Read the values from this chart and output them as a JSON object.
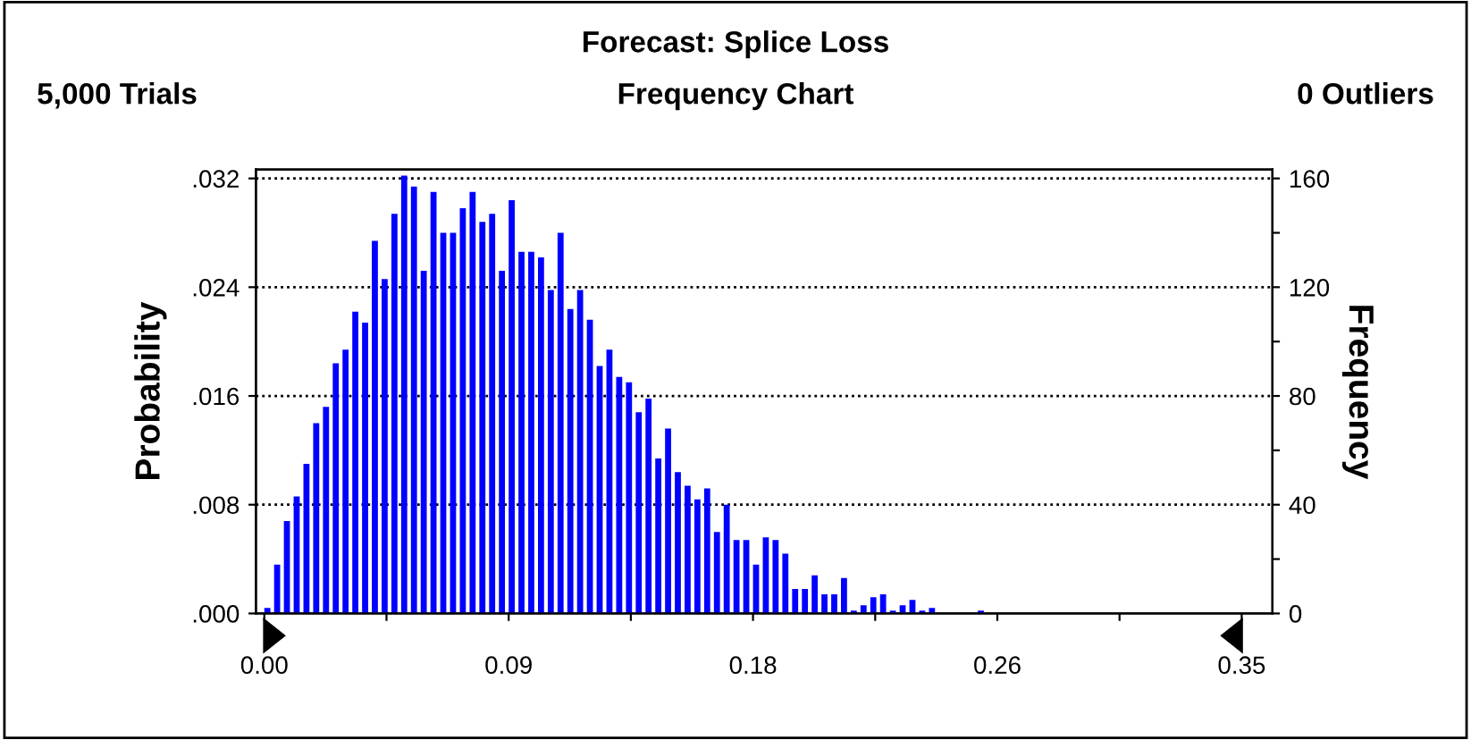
{
  "chart_data": {
    "type": "histogram",
    "title": "Forecast: Splice Loss",
    "subtitle": "Frequency Chart",
    "annotations": [
      "5,000 Trials",
      "0 Outliers"
    ],
    "ylabel": "Probability",
    "y2label": "Frequency",
    "bins": [
      0.0,
      0.0035,
      0.007,
      0.0105,
      0.014,
      0.0175,
      0.021,
      0.0245,
      0.028,
      0.0315,
      0.035,
      0.0385,
      0.042,
      0.0455,
      0.049,
      0.0525,
      0.056,
      0.0595,
      0.063,
      0.0665,
      0.07,
      0.0735,
      0.077,
      0.0805,
      0.084,
      0.0875,
      0.091,
      0.0945,
      0.098,
      0.1015,
      0.105,
      0.1085,
      0.112,
      0.1155,
      0.119,
      0.1225,
      0.126,
      0.1295,
      0.133,
      0.1365,
      0.14,
      0.1435,
      0.147,
      0.1505,
      0.154,
      0.1575,
      0.161,
      0.1645,
      0.168,
      0.1715,
      0.175,
      0.1785,
      0.182,
      0.1855,
      0.189,
      0.1925,
      0.196,
      0.1995,
      0.203,
      0.2065,
      0.21,
      0.2135,
      0.217,
      0.2205,
      0.224,
      0.2275,
      0.231,
      0.2345,
      0.238,
      0.2415,
      0.245,
      0.2485,
      0.252,
      0.2555,
      0.259,
      0.2625,
      0.266,
      0.2695,
      0.273,
      0.2765,
      0.28,
      0.2835,
      0.287,
      0.2905,
      0.294,
      0.2975,
      0.301,
      0.3045,
      0.308,
      0.3115,
      0.315,
      0.3185,
      0.322,
      0.3255,
      0.329,
      0.3325,
      0.336,
      0.3395,
      0.343,
      0.3465,
      0.35
    ],
    "series": [
      {
        "color": "#0000ff",
        "axis": "y2",
        "values": [
          2,
          18,
          34,
          43,
          55,
          70,
          76,
          92,
          97,
          111,
          107,
          137,
          123,
          147,
          161,
          157,
          126,
          155,
          140,
          140,
          149,
          155,
          144,
          147,
          126,
          152,
          133,
          133,
          131,
          119,
          140,
          112,
          119,
          108,
          91,
          97,
          87,
          85,
          74,
          79,
          57,
          68,
          52,
          47,
          42,
          46,
          30,
          40,
          27,
          27,
          18,
          28,
          27,
          22,
          9,
          9,
          14,
          7,
          7,
          13,
          1,
          3,
          6,
          7,
          1,
          3,
          5,
          1,
          2,
          0,
          0,
          0,
          0,
          1,
          0,
          0,
          0,
          0,
          0,
          0,
          0,
          0,
          0,
          0,
          0,
          0,
          0,
          0,
          0,
          0,
          0,
          0,
          0,
          0,
          0,
          0,
          0,
          0,
          0,
          0
        ]
      }
    ],
    "xlim": [
      -0.003,
      0.361
    ],
    "xticks": [
      {
        "value": 0.0,
        "label": "0.00"
      },
      {
        "value": 0.04375,
        "label": null
      },
      {
        "value": 0.0875,
        "label": "0.09"
      },
      {
        "value": 0.13125,
        "label": null
      },
      {
        "value": 0.175,
        "label": "0.18"
      },
      {
        "value": 0.21875,
        "label": null
      },
      {
        "value": 0.2625,
        "label": "0.26"
      },
      {
        "value": 0.30625,
        "label": null
      },
      {
        "value": 0.35,
        "label": "0.35"
      }
    ],
    "ylim": [
      0,
      0.03266
    ],
    "yticks": [
      {
        "value": 0,
        "label": ".000"
      },
      {
        "value": 0.008,
        "label": ".008"
      },
      {
        "value": 0.016,
        "label": ".016"
      },
      {
        "value": 0.024,
        "label": ".024"
      },
      {
        "value": 0.032,
        "label": ".032"
      }
    ],
    "y2lim": [
      0,
      163.3
    ],
    "y2ticks": [
      0,
      {
        "value": 20,
        "label": null
      },
      40,
      {
        "value": 60,
        "label": null
      },
      80,
      {
        "value": 100,
        "label": null
      },
      120,
      {
        "value": 140,
        "label": null
      },
      160
    ],
    "grid": "y",
    "legend": false
  }
}
